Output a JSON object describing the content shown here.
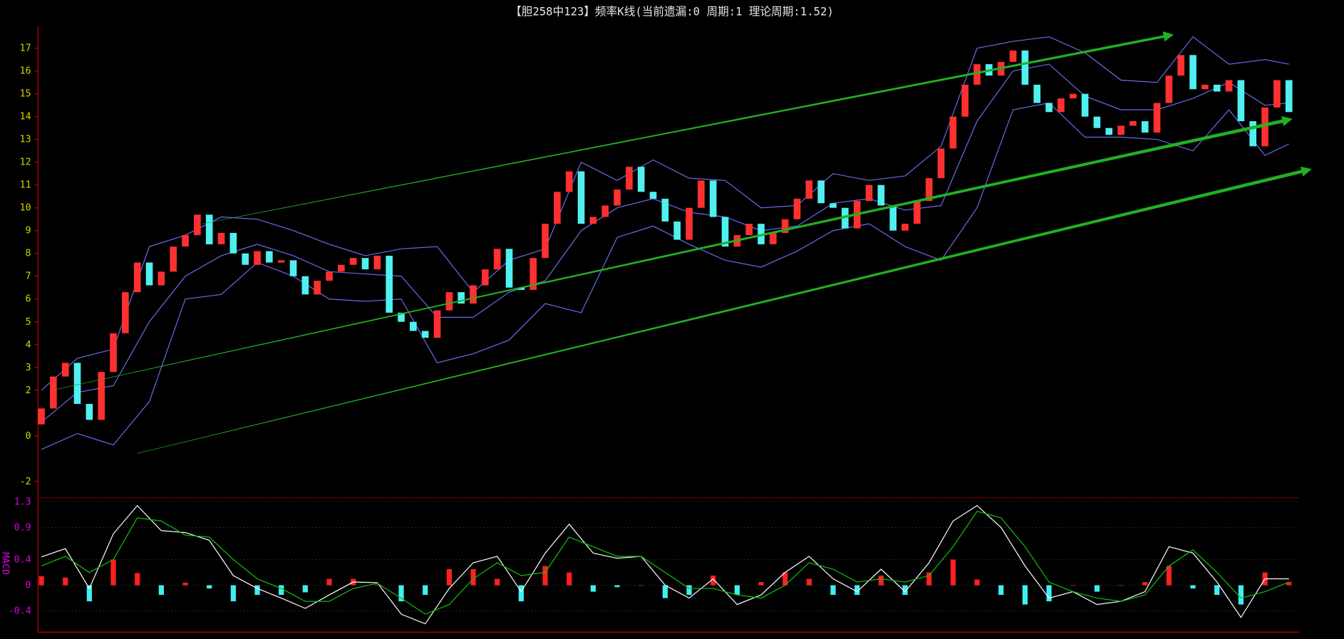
{
  "chart_data": [
    {
      "type": "candlestick",
      "title": "【胆258中123】频率K线(当前遗漏:0 周期:1 理论周期:1.52)",
      "ylim": [
        -2.6,
        17.8
      ],
      "yticks": [
        -2,
        0,
        2,
        3,
        4,
        5,
        6,
        7,
        8,
        9,
        10,
        11,
        12,
        13,
        14,
        15,
        16,
        17
      ],
      "up_color": "#ff3030",
      "down_color": "#50f0f0",
      "open": [
        0.5,
        1.2,
        2.6,
        3.2,
        1.4,
        0.7,
        2.8,
        4.5,
        6.3,
        7.6,
        6.6,
        7.2,
        8.3,
        8.8,
        9.7,
        8.4,
        8.9,
        8.0,
        7.5,
        8.1,
        7.6,
        7.7,
        7.0,
        6.2,
        6.8,
        7.2,
        7.5,
        7.8,
        7.3,
        7.9,
        5.4,
        5.0,
        4.6,
        4.3,
        5.5,
        6.3,
        5.8,
        6.6,
        7.3,
        8.2,
        6.5,
        6.4,
        7.8,
        9.3,
        10.7,
        11.6,
        9.3,
        9.6,
        10.1,
        10.8,
        11.8,
        10.7,
        10.4,
        9.4,
        8.6,
        10.0,
        11.2,
        9.6,
        8.3,
        8.8,
        9.3,
        8.4,
        8.9,
        9.5,
        10.4,
        11.2,
        10.2,
        10.0,
        9.1,
        10.3,
        11.0,
        10.1,
        9.0,
        9.3,
        10.3,
        11.3,
        12.6,
        14.0,
        15.4,
        16.3,
        15.8,
        16.4,
        16.9,
        15.4,
        14.6,
        14.2,
        14.8,
        15.0,
        14.0,
        13.5,
        13.2,
        13.6,
        13.8,
        13.3,
        14.6,
        15.8,
        16.7,
        15.2,
        15.4,
        15.1,
        15.6,
        13.8,
        12.7,
        14.4,
        15.6
      ],
      "close": [
        1.2,
        2.6,
        3.2,
        1.4,
        0.7,
        2.8,
        4.5,
        6.3,
        7.6,
        6.6,
        7.2,
        8.3,
        8.8,
        9.7,
        8.4,
        8.9,
        8.0,
        7.5,
        8.1,
        7.6,
        7.7,
        7.0,
        6.2,
        6.8,
        7.2,
        7.5,
        7.8,
        7.3,
        7.9,
        5.4,
        5.0,
        4.6,
        4.3,
        5.5,
        6.3,
        5.8,
        6.6,
        7.3,
        8.2,
        6.5,
        6.4,
        7.8,
        9.3,
        10.7,
        11.6,
        9.3,
        9.6,
        10.1,
        10.8,
        11.8,
        10.7,
        10.4,
        9.4,
        8.6,
        10.0,
        11.2,
        9.6,
        8.3,
        8.8,
        9.3,
        8.4,
        8.9,
        9.5,
        10.4,
        11.2,
        10.2,
        10.0,
        9.1,
        10.3,
        11.0,
        10.1,
        9.0,
        9.3,
        10.3,
        11.3,
        12.6,
        14.0,
        15.4,
        16.3,
        15.8,
        16.4,
        16.9,
        15.4,
        14.6,
        14.2,
        14.8,
        15.0,
        14.0,
        13.5,
        13.2,
        13.6,
        13.8,
        13.3,
        14.6,
        15.8,
        16.7,
        15.2,
        15.4,
        15.1,
        15.6,
        13.8,
        12.7,
        14.4,
        15.6,
        14.2
      ],
      "band_x": [
        0,
        3,
        6,
        9,
        12,
        15,
        18,
        21,
        24,
        27,
        30,
        33,
        36,
        39,
        42,
        45,
        48,
        51,
        54,
        57,
        60,
        63,
        66,
        69,
        72,
        75,
        78,
        81,
        84,
        87,
        90,
        93,
        96,
        99,
        102,
        104
      ],
      "band_color": "#6a6ae8",
      "bands": [
        {
          "values": [
            2.0,
            3.4,
            3.8,
            8.3,
            8.8,
            9.6,
            9.5,
            9.0,
            8.4,
            7.9,
            8.2,
            8.3,
            6.3,
            7.7,
            8.2,
            12.0,
            11.2,
            12.1,
            11.3,
            11.2,
            10.0,
            10.1,
            11.5,
            11.2,
            11.4,
            12.7,
            17.0,
            17.3,
            17.5,
            16.8,
            15.6,
            15.5,
            17.5,
            16.3,
            16.5,
            16.3
          ]
        },
        {
          "values": [
            0.6,
            1.9,
            2.2,
            5.0,
            7.0,
            7.9,
            8.4,
            7.9,
            7.2,
            7.1,
            7.0,
            5.2,
            5.2,
            6.3,
            6.8,
            9.0,
            10.0,
            10.4,
            9.8,
            9.6,
            9.0,
            9.2,
            10.2,
            10.4,
            9.9,
            10.1,
            13.8,
            16.0,
            16.3,
            14.9,
            14.3,
            14.3,
            14.8,
            15.5,
            14.5,
            14.6
          ]
        },
        {
          "values": [
            -0.6,
            0.1,
            -0.4,
            1.5,
            6.0,
            6.2,
            7.6,
            7.0,
            6.0,
            5.9,
            6.0,
            3.2,
            3.6,
            4.2,
            5.8,
            5.4,
            8.7,
            9.2,
            8.4,
            7.7,
            7.4,
            8.1,
            9.0,
            9.3,
            8.3,
            7.7,
            10.0,
            14.3,
            14.6,
            13.1,
            13.1,
            13.0,
            12.5,
            14.3,
            12.3,
            12.8
          ]
        }
      ],
      "trend_color": "#22b022",
      "trendlines": [
        {
          "x": [
            13.4,
            94.4
          ],
          "y": [
            9.3,
            17.6
          ],
          "width": [
            0.5,
            3
          ]
        },
        {
          "x": [
            0.9,
            104.3
          ],
          "y": [
            2.0,
            13.9
          ],
          "width": [
            0.5,
            4
          ]
        },
        {
          "x": [
            8,
            105.9
          ],
          "y": [
            -0.77,
            11.7
          ],
          "width": [
            0.5,
            4
          ]
        }
      ]
    },
    {
      "type": "macd",
      "ylabel": "MACD",
      "ylim": [
        -0.73,
        1.31
      ],
      "yticks": [
        -0.4,
        0,
        0.4,
        0.9,
        1.3
      ],
      "grid": true,
      "x": [
        0,
        2,
        4,
        6,
        8,
        10,
        12,
        14,
        16,
        18,
        20,
        22,
        24,
        26,
        28,
        30,
        32,
        34,
        36,
        38,
        40,
        42,
        44,
        46,
        48,
        50,
        52,
        54,
        56,
        58,
        60,
        62,
        64,
        66,
        68,
        70,
        72,
        74,
        76,
        78,
        80,
        82,
        84,
        86,
        88,
        90,
        92,
        94,
        96,
        98,
        100,
        102,
        104
      ],
      "series": [
        {
          "name": "DIF",
          "color": "#ffffff",
          "values": [
            0.44,
            0.57,
            -0.05,
            0.8,
            1.24,
            0.85,
            0.82,
            0.7,
            0.15,
            -0.05,
            -0.2,
            -0.36,
            -0.15,
            0.05,
            0.04,
            -0.45,
            -0.6,
            -0.05,
            0.35,
            0.45,
            -0.1,
            0.5,
            0.95,
            0.5,
            0.42,
            0.45,
            0.0,
            -0.2,
            0.1,
            -0.3,
            -0.15,
            0.2,
            0.45,
            0.1,
            -0.1,
            0.25,
            -0.1,
            0.35,
            1.0,
            1.24,
            0.9,
            0.3,
            -0.2,
            -0.1,
            -0.3,
            -0.25,
            -0.1,
            0.6,
            0.5,
            0.05,
            -0.5,
            0.1,
            0.1
          ]
        },
        {
          "name": "DEA",
          "color": "#10c010",
          "values": [
            0.3,
            0.45,
            0.2,
            0.4,
            1.05,
            1.0,
            0.78,
            0.75,
            0.4,
            0.1,
            -0.05,
            -0.25,
            -0.25,
            -0.05,
            0.03,
            -0.2,
            -0.45,
            -0.3,
            0.1,
            0.35,
            0.15,
            0.2,
            0.75,
            0.6,
            0.45,
            0.45,
            0.2,
            -0.05,
            -0.05,
            -0.15,
            -0.2,
            0.0,
            0.35,
            0.25,
            0.05,
            0.1,
            0.05,
            0.15,
            0.6,
            1.15,
            1.05,
            0.6,
            0.05,
            -0.1,
            -0.2,
            -0.25,
            -0.15,
            0.3,
            0.55,
            0.2,
            -0.2,
            -0.1,
            0.05
          ]
        }
      ],
      "hist": [
        0.14,
        0.12,
        -0.25,
        0.4,
        0.19,
        -0.15,
        0.04,
        -0.05,
        -0.25,
        -0.15,
        -0.15,
        -0.11,
        0.1,
        0.1,
        0.01,
        -0.25,
        -0.15,
        0.25,
        0.25,
        0.1,
        -0.25,
        0.3,
        0.2,
        -0.1,
        -0.03,
        0,
        -0.2,
        -0.15,
        0.15,
        -0.15,
        0.05,
        0.2,
        0.1,
        -0.15,
        -0.15,
        0.15,
        -0.15,
        0.2,
        0.4,
        0.09,
        -0.15,
        -0.3,
        -0.25,
        0,
        -0.1,
        0,
        0.05,
        0.3,
        -0.05,
        -0.15,
        -0.3,
        0.2,
        0.05
      ],
      "hist_up_color": "#ff2020",
      "hist_down_color": "#40f0f0"
    }
  ]
}
